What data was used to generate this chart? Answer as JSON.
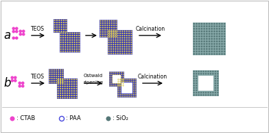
{
  "bg_color": "#ffffff",
  "border_color": "#bbbbbb",
  "ctab_color": "#ee44cc",
  "paa_edge": "#4444dd",
  "paa_fill": "#3333bb",
  "dot_yellow": "#ddcc55",
  "sio2_fill": "#88aaaa",
  "sio2_dot": "#557777",
  "label_a": "a",
  "label_b": "b",
  "teos_label": "TEOS",
  "calcination_label": "Calcination",
  "ostwald_label": "Ostwald\nripening",
  "legend_ctab": ": CTAB",
  "legend_paa": ": PAA",
  "legend_sio2": ": SiO₂",
  "figsize": [
    3.92,
    1.95
  ],
  "dpi": 100
}
